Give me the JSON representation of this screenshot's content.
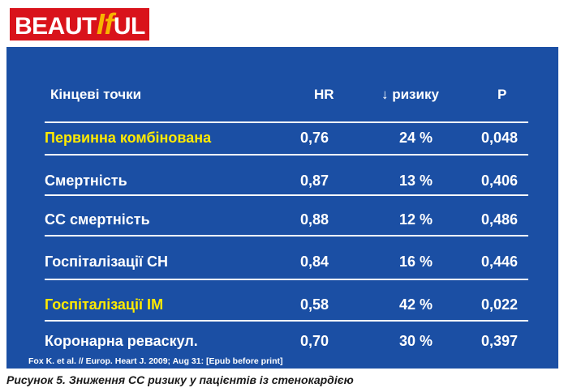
{
  "logo": {
    "parts": [
      "BEAUT",
      "If",
      "UL"
    ]
  },
  "table": {
    "header": [
      "Кінцеві точки",
      "HR",
      "↓ ризику",
      "P"
    ],
    "rows": [
      [
        "Первинна комбінована",
        "0,76",
        "24 %",
        "0,048"
      ],
      [
        "Смертність",
        "0,87",
        "13 %",
        "0,406"
      ],
      [
        "СС смертність",
        "0,88",
        "12 %",
        "0,486"
      ],
      [
        "Госпіталізації СН",
        "0,84",
        "16 %",
        "0,446"
      ],
      [
        "Госпіталізації ІМ",
        "0,58",
        "42 %",
        "0,022"
      ],
      [
        "Коронарна реваскул.",
        "0,70",
        "30 %",
        "0,397"
      ]
    ]
  },
  "source": "Fox K. et al. // Europ. Heart J. 2009; Aug 31: [Epub before print]",
  "caption": "Рисунок 5. Зниження СС ризику у пацієнтів із стенокардією"
}
